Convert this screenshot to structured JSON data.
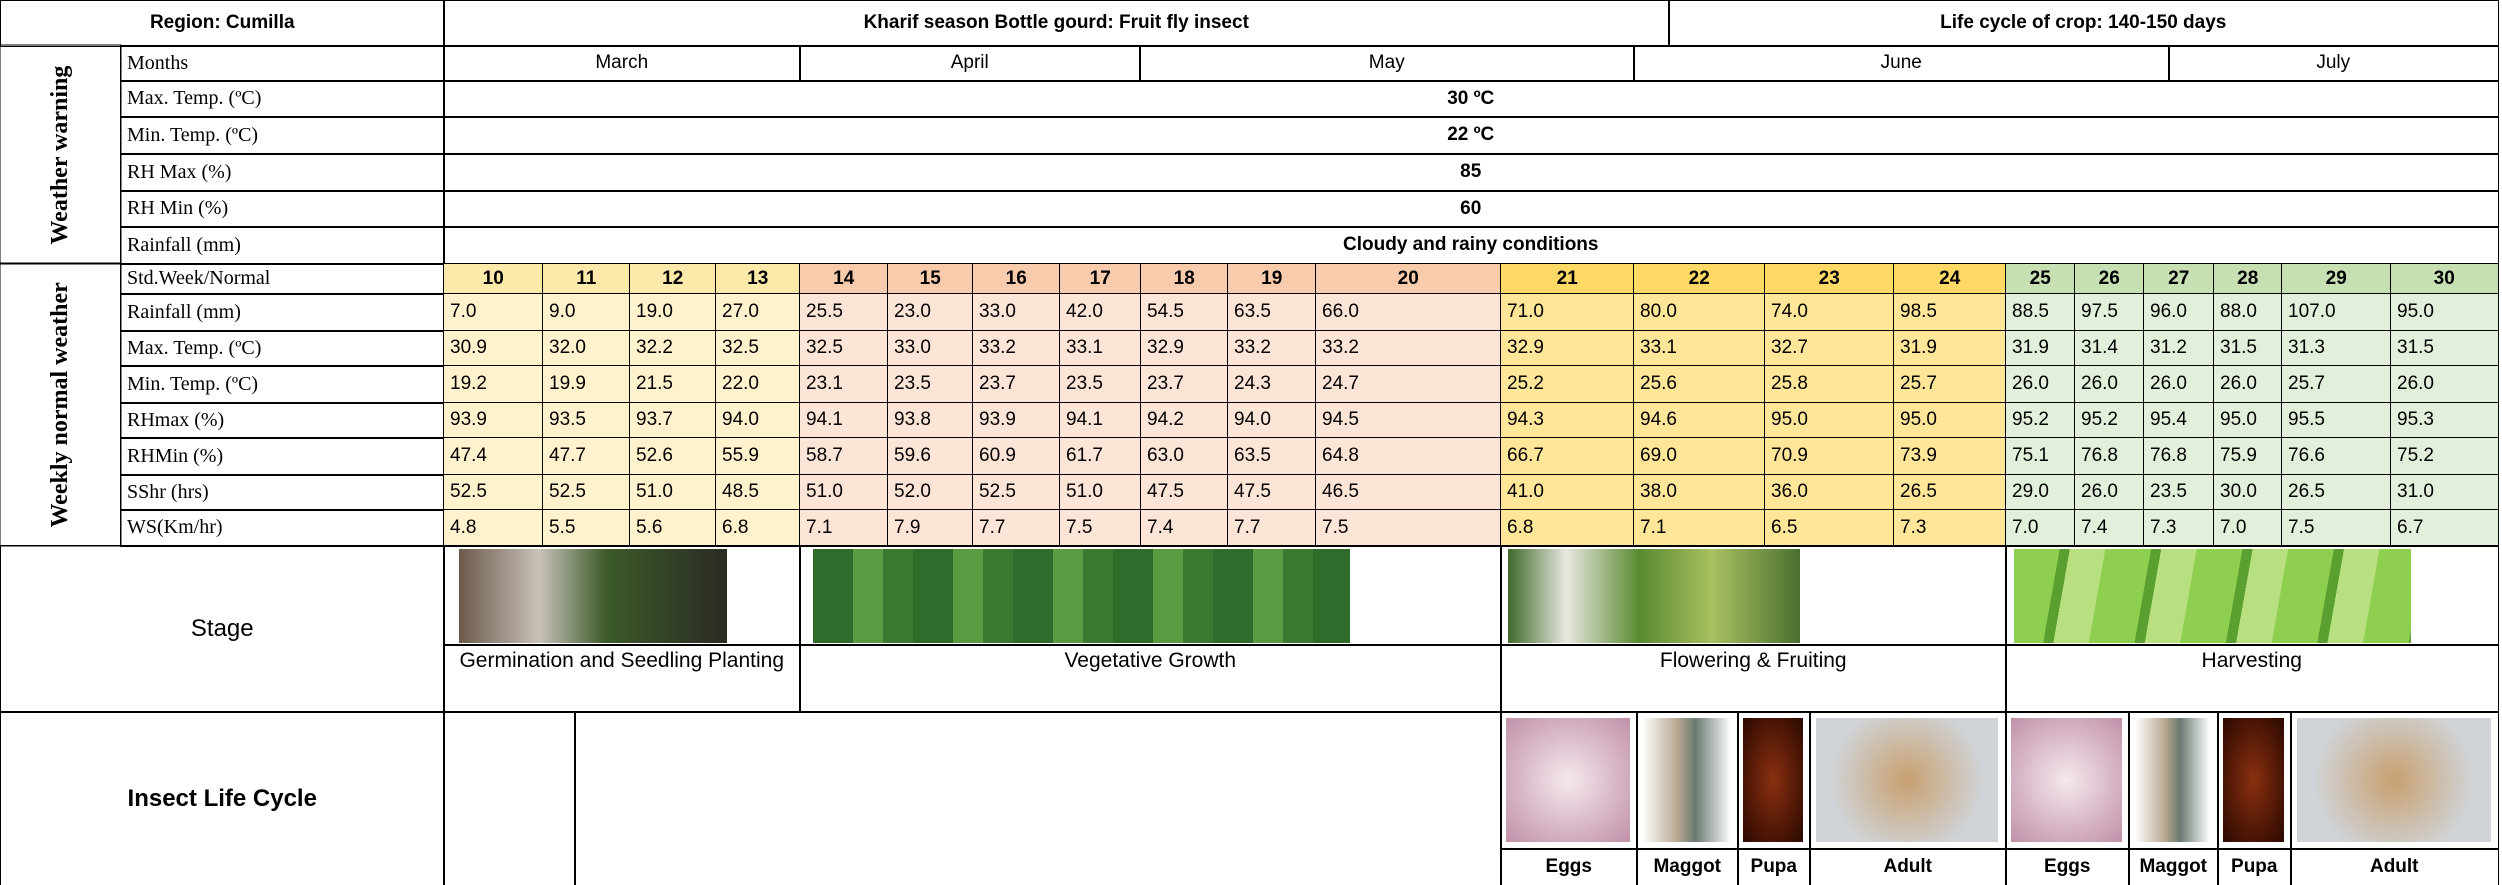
{
  "header": {
    "region": "Region: Cumilla",
    "title": "Kharif season Bottle gourd: Fruit fly insect",
    "life_cycle": "Life cycle of crop: 140-150 days"
  },
  "weather_warning": {
    "label": "Weather warning",
    "months_label": "Months",
    "months": [
      "March",
      "April",
      "May",
      "June",
      "July"
    ],
    "rows": [
      {
        "label": "Max. Temp. (ºC)",
        "value": "30 ºC"
      },
      {
        "label": "Min. Temp. (ºC)",
        "value": "22 ºC"
      },
      {
        "label": "RH Max (%)",
        "value": "85"
      },
      {
        "label": "RH Min (%)",
        "value": "60"
      },
      {
        "label": "Rainfall (mm)",
        "value": "Cloudy and rainy conditions"
      }
    ]
  },
  "weekly": {
    "label": "Weekly normal weather",
    "week_label": "Std.Week/Normal",
    "weeks": [
      "10",
      "11",
      "12",
      "13",
      "14",
      "15",
      "16",
      "17",
      "18",
      "19",
      "20",
      "21",
      "22",
      "23",
      "24",
      "25",
      "26",
      "27",
      "28",
      "29",
      "30"
    ],
    "rows": [
      {
        "label": "Rainfall (mm)",
        "values": [
          "7.0",
          "9.0",
          "19.0",
          "27.0",
          "25.5",
          "23.0",
          "33.0",
          "42.0",
          "54.5",
          "63.5",
          "66.0",
          "71.0",
          "80.0",
          "74.0",
          "98.5",
          "88.5",
          "97.5",
          "96.0",
          "88.0",
          "107.0",
          "95.0"
        ]
      },
      {
        "label": "Max. Temp. (ºC)",
        "values": [
          "30.9",
          "32.0",
          "32.2",
          "32.5",
          "32.5",
          "33.0",
          "33.2",
          "33.1",
          "32.9",
          "33.2",
          "33.2",
          "32.9",
          "33.1",
          "32.7",
          "31.9",
          "31.9",
          "31.4",
          "31.2",
          "31.5",
          "31.3",
          "31.5"
        ]
      },
      {
        "label": "Min. Temp. (ºC)",
        "values": [
          "19.2",
          "19.9",
          "21.5",
          "22.0",
          "23.1",
          "23.5",
          "23.7",
          "23.5",
          "23.7",
          "24.3",
          "24.7",
          "25.2",
          "25.6",
          "25.8",
          "25.7",
          "26.0",
          "26.0",
          "26.0",
          "26.0",
          "25.7",
          "26.0"
        ]
      },
      {
        "label": "RHmax (%)",
        "values": [
          "93.9",
          "93.5",
          "93.7",
          "94.0",
          "94.1",
          "93.8",
          "93.9",
          "94.1",
          "94.2",
          "94.0",
          "94.5",
          "94.3",
          "94.6",
          "95.0",
          "95.0",
          "95.2",
          "95.2",
          "95.4",
          "95.0",
          "95.5",
          "95.3"
        ]
      },
      {
        "label": "RHMin (%)",
        "values": [
          "47.4",
          "47.7",
          "52.6",
          "55.9",
          "58.7",
          "59.6",
          "60.9",
          "61.7",
          "63.0",
          "63.5",
          "64.8",
          "66.7",
          "69.0",
          "70.9",
          "73.9",
          "75.1",
          "76.8",
          "76.8",
          "75.9",
          "76.6",
          "75.2"
        ]
      },
      {
        "label": "SShr (hrs)",
        "values": [
          "52.5",
          "52.5",
          "51.0",
          "48.5",
          "51.0",
          "52.0",
          "52.5",
          "51.0",
          "47.5",
          "47.5",
          "46.5",
          "41.0",
          "38.0",
          "36.0",
          "26.5",
          "29.0",
          "26.0",
          "23.5",
          "30.0",
          "26.5",
          "31.0"
        ]
      },
      {
        "label": "WS(Km/hr)",
        "values": [
          "4.8",
          "5.5",
          "5.6",
          "6.8",
          "7.1",
          "7.9",
          "7.7",
          "7.5",
          "7.4",
          "7.7",
          "7.5",
          "6.8",
          "7.1",
          "6.5",
          "7.3",
          "7.0",
          "7.4",
          "7.3",
          "7.0",
          "7.5",
          "6.7"
        ]
      }
    ]
  },
  "stage": {
    "label": "Stage",
    "stages": [
      "Germination and Seedling Planting",
      "Vegetative Growth",
      "Flowering & Fruiting",
      "Harvesting"
    ]
  },
  "insect": {
    "label": "Insect Life Cycle",
    "stages": [
      "Eggs",
      "Maggot",
      "Pupa",
      "Adult",
      "Eggs",
      "Maggot",
      "Pupa",
      "Adult"
    ]
  }
}
